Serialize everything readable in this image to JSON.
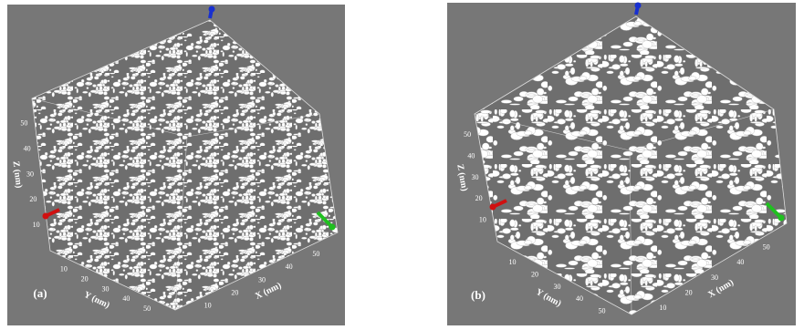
{
  "panels": [
    {
      "label": "(a)",
      "axes": {
        "x": {
          "title": "X (nm)",
          "ticks": [
            10,
            20,
            30,
            40,
            50
          ]
        },
        "y": {
          "title": "Y (nm)",
          "ticks": [
            10,
            20,
            30,
            40,
            50
          ]
        },
        "z": {
          "title": "Z (nm)",
          "ticks": [
            10,
            20,
            30,
            40,
            50
          ]
        }
      }
    },
    {
      "label": "(b)",
      "axes": {
        "x": {
          "title": "X (nm)",
          "ticks": [
            10,
            20,
            30,
            40,
            50
          ]
        },
        "y": {
          "title": "Y (nm)",
          "ticks": [
            10,
            20,
            30,
            40,
            50
          ]
        },
        "z": {
          "title": "Z (nm)",
          "ticks": [
            10,
            20,
            30,
            40,
            50
          ]
        }
      }
    }
  ]
}
